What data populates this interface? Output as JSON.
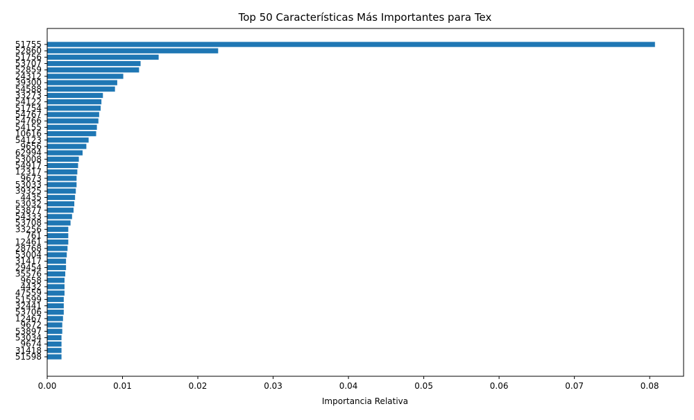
{
  "chart_data": {
    "type": "bar",
    "orientation": "horizontal",
    "title": "Top 50 Características Más Importantes para Tex",
    "xlabel": "Importancia Relativa",
    "ylabel": "",
    "xlim": [
      0,
      0.0845
    ],
    "xticks": [
      "0.00",
      "0.01",
      "0.02",
      "0.03",
      "0.04",
      "0.05",
      "0.06",
      "0.07",
      "0.08"
    ],
    "xtick_values": [
      0,
      0.01,
      0.02,
      0.03,
      0.04,
      0.05,
      0.06,
      0.07,
      0.08
    ],
    "grid": false,
    "bar_color": "#1f77b4",
    "categories": [
      "51755",
      "52860",
      "51756",
      "53707",
      "52859",
      "24312",
      "39300",
      "54588",
      "33273",
      "54122",
      "51754",
      "54767",
      "54766",
      "54155",
      "10616",
      "54123",
      "9656",
      "62994",
      "53008",
      "54917",
      "12317",
      "9673",
      "53033",
      "39325",
      "4435",
      "53032",
      "53877",
      "54333",
      "53708",
      "33256",
      "761",
      "12461",
      "28768",
      "53004",
      "31417",
      "29454",
      "35576",
      "9658",
      "4432",
      "47559",
      "51599",
      "32441",
      "53706",
      "12467",
      "9672",
      "53897",
      "53034",
      "9674",
      "31418",
      "51598"
    ],
    "values": [
      0.0807,
      0.0227,
      0.0148,
      0.0124,
      0.0122,
      0.0101,
      0.0093,
      0.009,
      0.0074,
      0.0072,
      0.0071,
      0.0069,
      0.0068,
      0.0066,
      0.0065,
      0.0055,
      0.0052,
      0.0047,
      0.0042,
      0.0041,
      0.004,
      0.0039,
      0.0039,
      0.0038,
      0.0037,
      0.0036,
      0.0035,
      0.0033,
      0.0031,
      0.0028,
      0.0028,
      0.0028,
      0.0027,
      0.0026,
      0.0025,
      0.0025,
      0.0024,
      0.0023,
      0.0023,
      0.0023,
      0.0022,
      0.0022,
      0.0022,
      0.0021,
      0.002,
      0.002,
      0.0019,
      0.0019,
      0.0019,
      0.0019
    ]
  }
}
